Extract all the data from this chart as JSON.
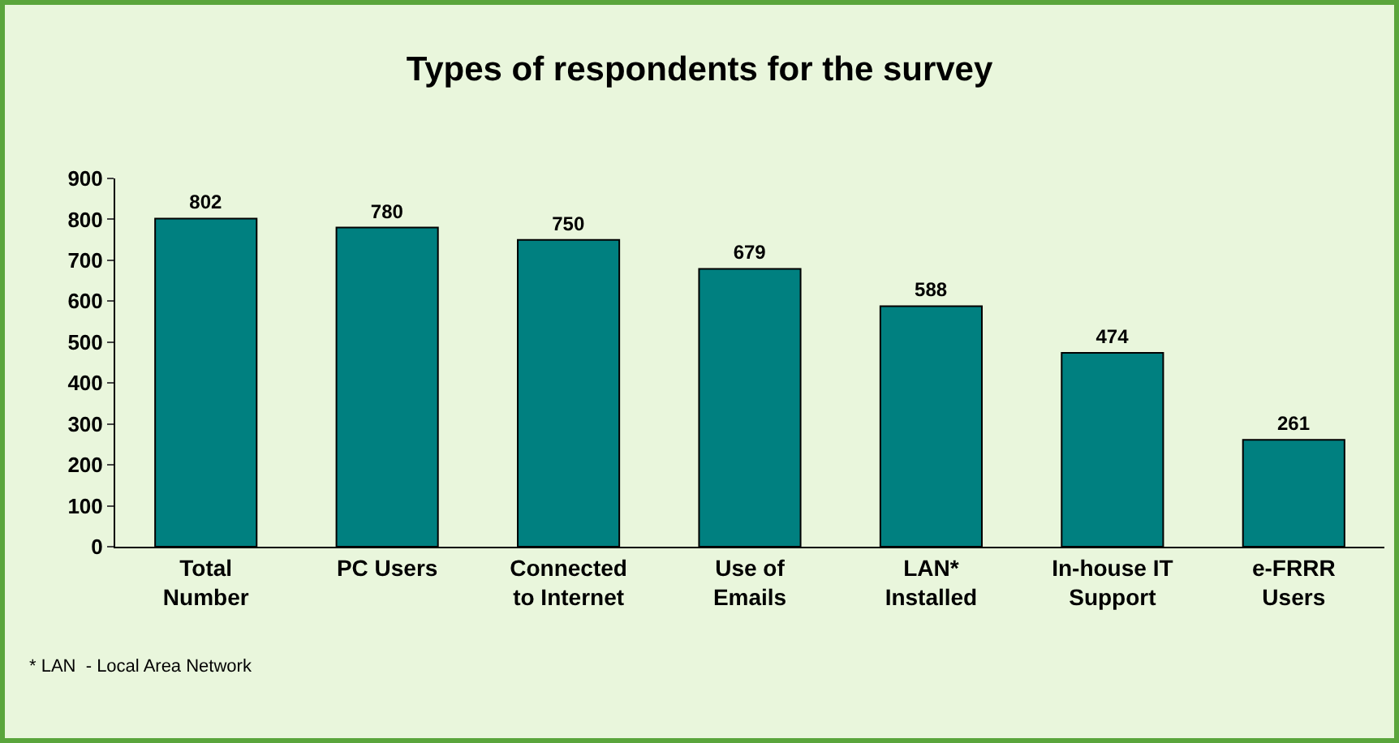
{
  "chart_data": {
    "type": "bar",
    "title": "Types of respondents for the survey",
    "categories": [
      "Total\nNumber",
      "PC Users",
      "Connected\nto Internet",
      "Use of\nEmails",
      "LAN*\nInstalled",
      "In-house IT\nSupport",
      "e-FRRR\nUsers"
    ],
    "values": [
      802,
      780,
      750,
      679,
      588,
      474,
      261
    ],
    "color": "#008080",
    "ylim": [
      0,
      900
    ],
    "yticks": [
      0,
      100,
      200,
      300,
      400,
      500,
      600,
      700,
      800,
      900
    ],
    "grid": false,
    "data_labels": true,
    "annotations": [
      "* LAN  - Local Area Network"
    ]
  }
}
